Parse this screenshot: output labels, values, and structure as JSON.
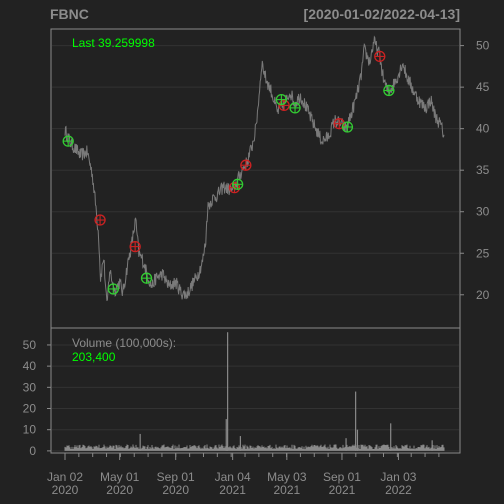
{
  "header": {
    "symbol": "FBNC",
    "date_range": "[2020-01-02/2022-04-13]"
  },
  "colors": {
    "background": "#222222",
    "panel_border": "#8a8a8a",
    "grid": "#333333",
    "text": "#8c8c8c",
    "price_line": "#7a7a7a",
    "highlight": "#00ff00",
    "buy_marker": "#33cc33",
    "sell_marker": "#cc2222",
    "volume_bar": "#8a8a8a"
  },
  "chart_data": [
    {
      "type": "line",
      "name": "price",
      "legend_label": "Last 39.259998",
      "ylim": [
        16,
        52
      ],
      "y_ticks": [
        20,
        25,
        30,
        35,
        40,
        45,
        50
      ],
      "grid": true,
      "x_ticks": [
        {
          "date": "2020-01-02",
          "label": [
            "Jan 02",
            "2020"
          ]
        },
        {
          "date": "2020-05-01",
          "label": [
            "May 01",
            "2020"
          ]
        },
        {
          "date": "2020-09-01",
          "label": [
            "Sep 01",
            "2020"
          ]
        },
        {
          "date": "2021-01-04",
          "label": [
            "Jan 04",
            "2021"
          ]
        },
        {
          "date": "2021-05-03",
          "label": [
            "May 03",
            "2021"
          ]
        },
        {
          "date": "2021-09-01",
          "label": [
            "Sep 01",
            "2021"
          ]
        },
        {
          "date": "2022-01-03",
          "label": [
            "Jan 03",
            "2022"
          ]
        }
      ],
      "series_points": [
        [
          "2020-01-02",
          39.8
        ],
        [
          "2020-01-15",
          38.2
        ],
        [
          "2020-02-05",
          36.8
        ],
        [
          "2020-02-20",
          37.2
        ],
        [
          "2020-03-02",
          34.5
        ],
        [
          "2020-03-10",
          30.5
        ],
        [
          "2020-03-16",
          27.0
        ],
        [
          "2020-03-20",
          22.0
        ],
        [
          "2020-03-27",
          24.5
        ],
        [
          "2020-04-03",
          18.5
        ],
        [
          "2020-04-09",
          23.0
        ],
        [
          "2020-04-20",
          20.5
        ],
        [
          "2020-05-01",
          21.5
        ],
        [
          "2020-05-08",
          20.2
        ],
        [
          "2020-05-18",
          23.5
        ],
        [
          "2020-05-27",
          26.0
        ],
        [
          "2020-06-05",
          29.0
        ],
        [
          "2020-06-12",
          25.0
        ],
        [
          "2020-06-22",
          24.0
        ],
        [
          "2020-06-30",
          22.5
        ],
        [
          "2020-07-10",
          21.0
        ],
        [
          "2020-07-20",
          22.0
        ],
        [
          "2020-08-03",
          22.5
        ],
        [
          "2020-08-17",
          21.0
        ],
        [
          "2020-09-01",
          21.5
        ],
        [
          "2020-09-14",
          20.2
        ],
        [
          "2020-09-25",
          20.0
        ],
        [
          "2020-10-05",
          21.0
        ],
        [
          "2020-10-20",
          22.5
        ],
        [
          "2020-10-30",
          24.0
        ],
        [
          "2020-11-06",
          26.5
        ],
        [
          "2020-11-10",
          30.5
        ],
        [
          "2020-11-20",
          31.5
        ],
        [
          "2020-12-01",
          32.0
        ],
        [
          "2020-12-15",
          33.0
        ],
        [
          "2021-01-04",
          32.5
        ],
        [
          "2021-01-12",
          33.5
        ],
        [
          "2021-01-25",
          35.0
        ],
        [
          "2021-02-05",
          36.0
        ],
        [
          "2021-02-16",
          38.0
        ],
        [
          "2021-02-24",
          40.0
        ],
        [
          "2021-03-03",
          44.0
        ],
        [
          "2021-03-09",
          48.0
        ],
        [
          "2021-03-18",
          46.0
        ],
        [
          "2021-03-30",
          44.5
        ],
        [
          "2021-04-12",
          42.0
        ],
        [
          "2021-04-26",
          43.0
        ],
        [
          "2021-05-03",
          43.5
        ],
        [
          "2021-05-10",
          44.5
        ],
        [
          "2021-05-20",
          43.0
        ],
        [
          "2021-06-02",
          44.0
        ],
        [
          "2021-06-15",
          42.5
        ],
        [
          "2021-07-01",
          40.5
        ],
        [
          "2021-07-19",
          38.5
        ],
        [
          "2021-08-02",
          39.0
        ],
        [
          "2021-08-16",
          41.0
        ],
        [
          "2021-09-01",
          40.5
        ],
        [
          "2021-09-10",
          40.0
        ],
        [
          "2021-09-20",
          41.5
        ],
        [
          "2021-10-01",
          43.5
        ],
        [
          "2021-10-12",
          46.0
        ],
        [
          "2021-10-20",
          49.5
        ],
        [
          "2021-11-01",
          48.0
        ],
        [
          "2021-11-10",
          50.5
        ],
        [
          "2021-11-22",
          49.0
        ],
        [
          "2021-12-01",
          46.0
        ],
        [
          "2021-12-10",
          44.5
        ],
        [
          "2021-12-20",
          45.0
        ],
        [
          "2022-01-03",
          46.5
        ],
        [
          "2022-01-12",
          48.0
        ],
        [
          "2022-01-20",
          46.5
        ],
        [
          "2022-02-01",
          45.0
        ],
        [
          "2022-02-10",
          44.0
        ],
        [
          "2022-02-22",
          43.0
        ],
        [
          "2022-03-04",
          42.5
        ],
        [
          "2022-03-15",
          43.5
        ],
        [
          "2022-03-25",
          41.5
        ],
        [
          "2022-04-05",
          40.5
        ],
        [
          "2022-04-13",
          39.26
        ]
      ],
      "buy_signals": [
        {
          "date": "2020-01-09",
          "value": 38.5
        },
        {
          "date": "2020-04-17",
          "value": 20.7
        },
        {
          "date": "2020-06-29",
          "value": 22.0
        },
        {
          "date": "2021-01-15",
          "value": 33.3
        },
        {
          "date": "2021-04-21",
          "value": 43.5
        },
        {
          "date": "2021-05-21",
          "value": 42.5
        },
        {
          "date": "2021-09-13",
          "value": 40.2
        },
        {
          "date": "2021-12-13",
          "value": 44.6
        }
      ],
      "sell_signals": [
        {
          "date": "2020-03-19",
          "value": 29.0
        },
        {
          "date": "2020-06-04",
          "value": 25.8
        },
        {
          "date": "2021-01-08",
          "value": 32.9
        },
        {
          "date": "2021-02-02",
          "value": 35.6
        },
        {
          "date": "2021-04-27",
          "value": 42.8
        },
        {
          "date": "2021-08-26",
          "value": 40.6
        },
        {
          "date": "2021-11-23",
          "value": 48.7
        }
      ]
    },
    {
      "type": "bar",
      "name": "volume",
      "legend_label": "Volume (100,000s):",
      "legend_value": "203,400",
      "ylim": [
        -1,
        58
      ],
      "y_ticks": [
        0,
        10,
        20,
        30,
        40,
        50
      ],
      "grid": true,
      "baseline": 1.5,
      "spikes": [
        {
          "date": "2020-06-15",
          "value": 8
        },
        {
          "date": "2020-12-21",
          "value": 15
        },
        {
          "date": "2020-12-24",
          "value": 56
        },
        {
          "date": "2021-01-21",
          "value": 7
        },
        {
          "date": "2021-09-10",
          "value": 6
        },
        {
          "date": "2021-10-01",
          "value": 28
        },
        {
          "date": "2021-10-05",
          "value": 10
        },
        {
          "date": "2021-12-17",
          "value": 13
        },
        {
          "date": "2022-03-18",
          "value": 5
        }
      ]
    }
  ]
}
